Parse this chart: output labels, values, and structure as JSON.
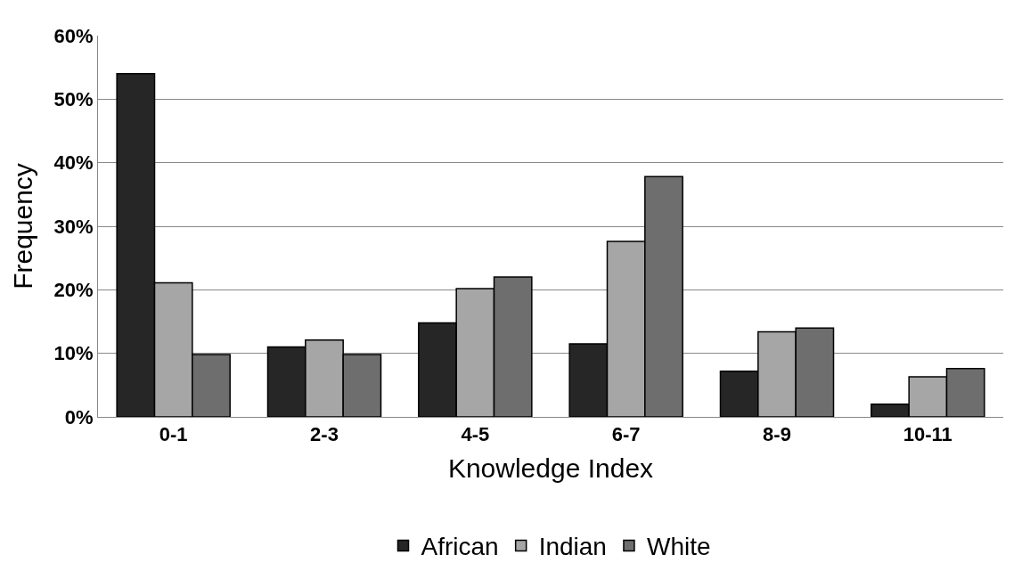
{
  "chart_data": {
    "type": "bar",
    "xlabel": "Knowledge Index",
    "ylabel": "Frequency",
    "categories": [
      "0-1",
      "2-3",
      "4-5",
      "6-7",
      "8-9",
      "10-11"
    ],
    "series": [
      {
        "name": "African",
        "color": "#262626",
        "values": [
          54.0,
          11.0,
          14.8,
          11.5,
          7.2,
          2.0
        ]
      },
      {
        "name": "Indian",
        "color": "#a6a6a6",
        "values": [
          21.1,
          12.1,
          20.2,
          27.6,
          13.4,
          6.3
        ]
      },
      {
        "name": "White",
        "color": "#6e6e6e",
        "values": [
          9.8,
          9.8,
          22.0,
          37.8,
          14.0,
          7.6
        ]
      }
    ],
    "ylim": [
      0,
      60
    ],
    "yticks": [
      {
        "value": 0,
        "label": "0%"
      },
      {
        "value": 10,
        "label": "10%"
      },
      {
        "value": 20,
        "label": "20%"
      },
      {
        "value": 30,
        "label": "30%"
      },
      {
        "value": 40,
        "label": "40%"
      },
      {
        "value": 50,
        "label": "50%"
      },
      {
        "value": 60,
        "label": "60%"
      }
    ],
    "grid": "y",
    "legend": "bottom"
  }
}
